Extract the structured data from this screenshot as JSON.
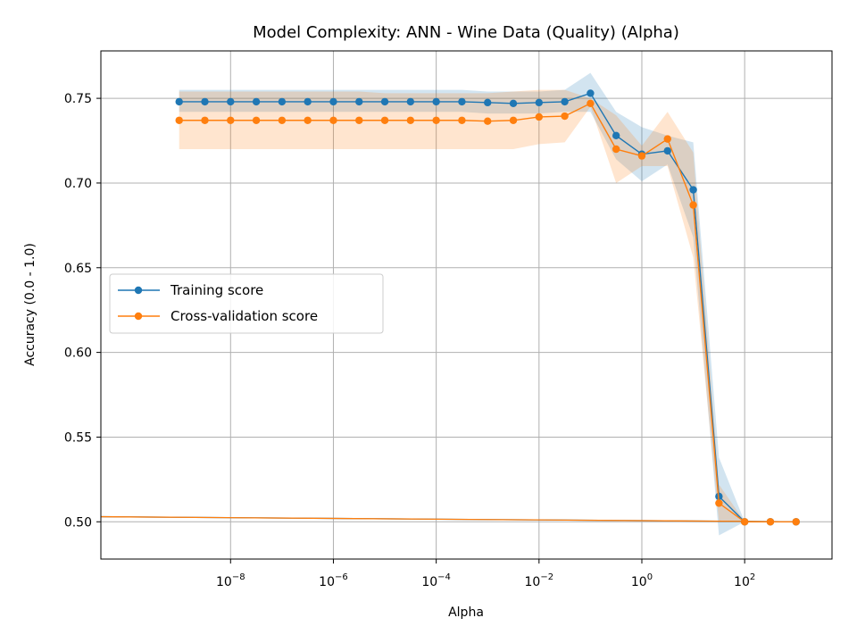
{
  "chart_data": {
    "type": "line",
    "title": "Model Complexity: ANN - Wine Data (Quality) (Alpha)",
    "xlabel": "Alpha",
    "ylabel": "Accuracy (0.0 - 1.0)",
    "xscale": "log",
    "xlim": [
      3e-11,
      5000
    ],
    "ylim": [
      0.478,
      0.778
    ],
    "grid": true,
    "legend_position": "center-left",
    "x_ticks": [
      {
        "value": 1e-08,
        "base": "10",
        "exp": "−8"
      },
      {
        "value": 1e-06,
        "base": "10",
        "exp": "−6"
      },
      {
        "value": 0.0001,
        "base": "10",
        "exp": "−4"
      },
      {
        "value": 0.01,
        "base": "10",
        "exp": "−2"
      },
      {
        "value": 1,
        "base": "10",
        "exp": "0"
      },
      {
        "value": 100,
        "base": "10",
        "exp": "2"
      }
    ],
    "y_ticks": [
      "0.50",
      "0.55",
      "0.60",
      "0.65",
      "0.70",
      "0.75"
    ],
    "x": [
      1e-09,
      3.162e-09,
      1e-08,
      3.162e-08,
      1e-07,
      3.162e-07,
      1e-06,
      3.162e-06,
      1e-05,
      3.162e-05,
      0.0001,
      0.0003162,
      0.001,
      0.003162,
      0.01,
      0.03162,
      0.1,
      0.3162,
      1,
      3.162,
      10,
      31.62,
      100,
      316.2,
      1000
    ],
    "series": [
      {
        "name": "Training score",
        "color": "#1f77b4",
        "values": [
          0.748,
          0.748,
          0.748,
          0.748,
          0.748,
          0.748,
          0.748,
          0.748,
          0.748,
          0.748,
          0.748,
          0.748,
          0.7475,
          0.747,
          0.7475,
          0.748,
          0.753,
          0.728,
          0.717,
          0.719,
          0.696,
          0.515,
          0.5,
          0.5,
          0.5
        ],
        "band_lower": [
          0.742,
          0.742,
          0.742,
          0.742,
          0.742,
          0.742,
          0.742,
          0.742,
          0.742,
          0.742,
          0.742,
          0.742,
          0.741,
          0.741,
          0.741,
          0.742,
          0.742,
          0.714,
          0.701,
          0.711,
          0.668,
          0.492,
          0.5,
          0.5,
          0.5
        ],
        "band_upper": [
          0.755,
          0.755,
          0.755,
          0.755,
          0.755,
          0.755,
          0.755,
          0.755,
          0.755,
          0.755,
          0.755,
          0.755,
          0.754,
          0.754,
          0.754,
          0.755,
          0.765,
          0.742,
          0.733,
          0.728,
          0.724,
          0.538,
          0.5,
          0.5,
          0.5
        ]
      },
      {
        "name": "Cross-validation score",
        "color": "#ff7f0e",
        "values": [
          0.737,
          0.737,
          0.737,
          0.737,
          0.737,
          0.737,
          0.737,
          0.737,
          0.737,
          0.737,
          0.737,
          0.737,
          0.7365,
          0.737,
          0.739,
          0.7395,
          0.747,
          0.72,
          0.716,
          0.726,
          0.687,
          0.511,
          0.5,
          0.5,
          0.5
        ],
        "band_lower": [
          0.72,
          0.72,
          0.72,
          0.72,
          0.72,
          0.72,
          0.72,
          0.72,
          0.72,
          0.72,
          0.72,
          0.72,
          0.72,
          0.72,
          0.723,
          0.724,
          0.745,
          0.7,
          0.71,
          0.71,
          0.656,
          0.5,
          0.5,
          0.5,
          0.5
        ],
        "band_upper": [
          0.754,
          0.754,
          0.754,
          0.754,
          0.754,
          0.754,
          0.754,
          0.754,
          0.753,
          0.753,
          0.753,
          0.753,
          0.753,
          0.754,
          0.755,
          0.755,
          0.75,
          0.74,
          0.722,
          0.742,
          0.718,
          0.522,
          0.5,
          0.5,
          0.5
        ]
      }
    ],
    "baseline_lines": [
      {
        "color": "#1f77b4",
        "x": [
          3e-11,
          1000
        ],
        "y": [
          0.503,
          0.5
        ]
      },
      {
        "color": "#ff7f0e",
        "x": [
          3e-11,
          1000
        ],
        "y": [
          0.503,
          0.5
        ]
      }
    ]
  }
}
